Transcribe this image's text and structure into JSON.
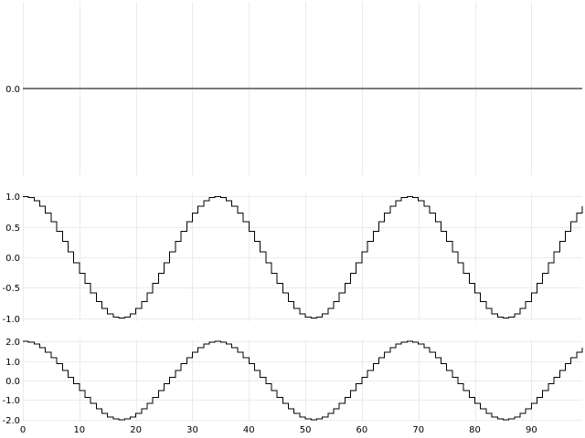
{
  "chart_data": [
    {
      "type": "line",
      "title": "",
      "xlabel": "",
      "ylabel": "",
      "step": true,
      "grid": true,
      "xlim": [
        0,
        99
      ],
      "ylim": [
        -1,
        1
      ],
      "yticks": [
        0.0
      ],
      "ytick_labels": [
        "0.0"
      ],
      "xticks": [
        0,
        10,
        20,
        30,
        40,
        50,
        60,
        70,
        80,
        90
      ],
      "xtick_labels": [],
      "series": [
        {
          "x_start": 0,
          "x_step": 1,
          "values": [
            0,
            0,
            0,
            0,
            0,
            0,
            0,
            0,
            0,
            0,
            0,
            0,
            0,
            0,
            0,
            0,
            0,
            0,
            0,
            0,
            0,
            0,
            0,
            0,
            0,
            0,
            0,
            0,
            0,
            0,
            0,
            0,
            0,
            0,
            0,
            0,
            0,
            0,
            0,
            0,
            0,
            0,
            0,
            0,
            0,
            0,
            0,
            0,
            0,
            0,
            0,
            0,
            0,
            0,
            0,
            0,
            0,
            0,
            0,
            0,
            0,
            0,
            0,
            0,
            0,
            0,
            0,
            0,
            0,
            0,
            0,
            0,
            0,
            0,
            0,
            0,
            0,
            0,
            0,
            0,
            0,
            0,
            0,
            0,
            0,
            0,
            0,
            0,
            0,
            0,
            0,
            0,
            0,
            0,
            0,
            0,
            0,
            0,
            0,
            0
          ]
        }
      ]
    },
    {
      "type": "line",
      "title": "",
      "xlabel": "",
      "ylabel": "",
      "step": true,
      "grid": true,
      "xlim": [
        0,
        99
      ],
      "ylim": [
        -1.05,
        1.05
      ],
      "yticks": [
        1.0,
        0.5,
        0.0,
        -0.5,
        -1.0
      ],
      "ytick_labels": [
        "1.0",
        "0.5",
        "0.0",
        "-0.5",
        "-1.0"
      ],
      "xticks": [
        0,
        10,
        20,
        30,
        40,
        50,
        60,
        70,
        80,
        90
      ],
      "xtick_labels": [],
      "series": [
        {
          "x_start": 0,
          "x_step": 1,
          "values": [
            1,
            0.982,
            0.928,
            0.841,
            0.725,
            0.585,
            0.427,
            0.259,
            0.087,
            -0.087,
            -0.259,
            -0.427,
            -0.585,
            -0.725,
            -0.841,
            -0.928,
            -0.982,
            -1,
            -0.982,
            -0.928,
            -0.841,
            -0.725,
            -0.585,
            -0.427,
            -0.259,
            -0.087,
            0.087,
            0.259,
            0.427,
            0.585,
            0.725,
            0.841,
            0.928,
            0.982,
            1,
            0.982,
            0.928,
            0.841,
            0.725,
            0.585,
            0.427,
            0.259,
            0.087,
            -0.087,
            -0.259,
            -0.427,
            -0.585,
            -0.725,
            -0.841,
            -0.928,
            -0.982,
            -1,
            -0.982,
            -0.928,
            -0.841,
            -0.725,
            -0.585,
            -0.427,
            -0.259,
            -0.087,
            0.087,
            0.259,
            0.427,
            0.585,
            0.725,
            0.841,
            0.928,
            0.982,
            1,
            0.982,
            0.928,
            0.841,
            0.725,
            0.585,
            0.427,
            0.259,
            0.087,
            -0.087,
            -0.259,
            -0.427,
            -0.585,
            -0.725,
            -0.841,
            -0.928,
            -0.982,
            -1,
            -0.982,
            -0.928,
            -0.841,
            -0.725,
            -0.585,
            -0.427,
            -0.259,
            -0.087,
            0.087,
            0.259,
            0.427,
            0.585,
            0.725,
            0.841
          ]
        }
      ]
    },
    {
      "type": "line",
      "title": "",
      "xlabel": "",
      "ylabel": "",
      "step": true,
      "grid": true,
      "xlim": [
        0,
        99
      ],
      "ylim": [
        -2.1,
        2.1
      ],
      "yticks": [
        2.0,
        1.0,
        0.0,
        -1.0,
        -2.0
      ],
      "ytick_labels": [
        "2.0",
        "1.0",
        "0.0",
        "-1.0",
        "-2.0"
      ],
      "xticks": [
        0,
        10,
        20,
        30,
        40,
        50,
        60,
        70,
        80,
        90
      ],
      "xtick_labels": [
        "0",
        "10",
        "20",
        "30",
        "40",
        "50",
        "60",
        "70",
        "80",
        "90"
      ],
      "series": [
        {
          "x_start": 0,
          "x_step": 1,
          "values": [
            2,
            1.964,
            1.856,
            1.682,
            1.45,
            1.17,
            0.854,
            0.518,
            0.174,
            -0.174,
            -0.518,
            -0.854,
            -1.17,
            -1.45,
            -1.682,
            -1.856,
            -1.964,
            -2,
            -1.964,
            -1.856,
            -1.682,
            -1.45,
            -1.17,
            -0.854,
            -0.518,
            -0.174,
            0.174,
            0.518,
            0.854,
            1.17,
            1.45,
            1.682,
            1.856,
            1.964,
            2,
            1.964,
            1.856,
            1.682,
            1.45,
            1.17,
            0.854,
            0.518,
            0.174,
            -0.174,
            -0.518,
            -0.854,
            -1.17,
            -1.45,
            -1.682,
            -1.856,
            -1.964,
            -2,
            -1.964,
            -1.856,
            -1.682,
            -1.45,
            -1.17,
            -0.854,
            -0.518,
            -0.174,
            0.174,
            0.518,
            0.854,
            1.17,
            1.45,
            1.682,
            1.856,
            1.964,
            2,
            1.964,
            1.856,
            1.682,
            1.45,
            1.17,
            0.854,
            0.518,
            0.174,
            -0.174,
            -0.518,
            -0.854,
            -1.17,
            -1.45,
            -1.682,
            -1.856,
            -1.964,
            -2,
            -1.964,
            -1.856,
            -1.682,
            -1.45,
            -1.17,
            -0.854,
            -0.518,
            -0.174,
            0.174,
            0.518,
            0.854,
            1.17,
            1.45,
            1.682
          ]
        }
      ]
    }
  ]
}
